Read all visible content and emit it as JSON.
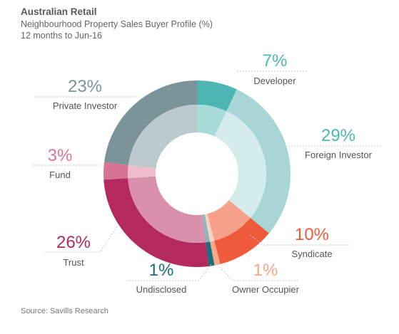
{
  "header": {
    "title": "Australian Retail",
    "subtitle": "Neighbourhood Property Sales Buyer Profile (%)",
    "period": "12 months to Jun-16"
  },
  "footer": {
    "source": "Source: Savills Research"
  },
  "chart_data": {
    "type": "pie",
    "variant": "donut",
    "title": "Australian Retail",
    "subtitle": "Neighbourhood Property Sales Buyer Profile (%)",
    "slices": [
      {
        "name": "Developer",
        "value": 7,
        "label": "7%",
        "color": "#4db6b2",
        "inner_color": "#a8dcd8",
        "label_color": "#4db6b2"
      },
      {
        "name": "Foreign Investor",
        "value": 29,
        "label": "29%",
        "color": "#a8d6d6",
        "inner_color": "#d5ecec",
        "label_color": "#4db6b2"
      },
      {
        "name": "Syndicate",
        "value": 10,
        "label": "10%",
        "color": "#ef5a3a",
        "inner_color": "#f7a08a",
        "label_color": "#ef5a3a"
      },
      {
        "name": "Owner Occupier",
        "value": 1,
        "label": "1%",
        "color": "#f6a98a",
        "inner_color": "#fbd3c4",
        "label_color": "#f6a98a"
      },
      {
        "name": "Undisclosed",
        "value": 1,
        "label": "1%",
        "color": "#1c6f7a",
        "inner_color": "#8bb7bd",
        "label_color": "#1c6f7a"
      },
      {
        "name": "Trust",
        "value": 26,
        "label": "26%",
        "color": "#b52a5e",
        "inner_color": "#da90aa",
        "label_color": "#b52a5e"
      },
      {
        "name": "Fund",
        "value": 3,
        "label": "3%",
        "color": "#d87493",
        "inner_color": "#efbccb",
        "label_color": "#d87493"
      },
      {
        "name": "Private Investor",
        "value": 23,
        "label": "23%",
        "color": "#7b949a",
        "inner_color": "#bccacd",
        "label_color": "#7b949a"
      }
    ]
  }
}
